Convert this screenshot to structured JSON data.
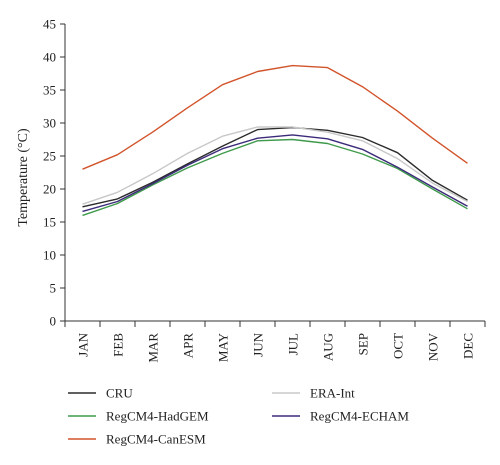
{
  "chart_data": {
    "type": "line",
    "ylabel": "Temperature (°C)",
    "xlabel": "",
    "ylim": [
      0,
      45
    ],
    "yticks": [
      0,
      5,
      10,
      15,
      20,
      25,
      30,
      35,
      40,
      45
    ],
    "categories": [
      "JAN",
      "FEB",
      "MAR",
      "APR",
      "MAY",
      "JUN",
      "JUL",
      "AUG",
      "SEP",
      "OCT",
      "NOV",
      "DEC"
    ],
    "grid": false,
    "legend_position": "bottom",
    "series": [
      {
        "name": "CRU",
        "color": "#2b2b2b",
        "values": [
          17.3,
          18.5,
          21.0,
          23.8,
          26.5,
          29.0,
          29.3,
          28.9,
          27.8,
          25.5,
          21.3,
          18.3
        ]
      },
      {
        "name": "ERA-Int",
        "color": "#c8c8c8",
        "values": [
          17.7,
          19.5,
          22.3,
          25.4,
          28.0,
          29.4,
          29.4,
          28.6,
          27.3,
          24.6,
          20.9,
          18.1
        ]
      },
      {
        "name": "RegCM4-HadGEM",
        "color": "#3f9a4b",
        "values": [
          16.0,
          17.8,
          20.6,
          23.2,
          25.4,
          27.3,
          27.5,
          26.9,
          25.3,
          23.1,
          20.0,
          17.0
        ]
      },
      {
        "name": "RegCM4-ECHAM",
        "color": "#3b2a7a",
        "values": [
          16.6,
          18.1,
          20.8,
          23.6,
          26.1,
          27.7,
          28.2,
          27.6,
          26.0,
          23.3,
          20.3,
          17.4
        ]
      },
      {
        "name": "RegCM4-CanESM",
        "color": "#d2542b",
        "values": [
          23.0,
          25.2,
          28.6,
          32.3,
          35.8,
          37.8,
          38.7,
          38.4,
          35.5,
          31.8,
          27.7,
          23.9
        ]
      }
    ],
    "legend": [
      {
        "label": "CRU",
        "series": 0
      },
      {
        "label": "ERA-Int",
        "series": 1
      },
      {
        "label": "RegCM4-HadGEM",
        "series": 2
      },
      {
        "label": "RegCM4-ECHAM",
        "series": 3
      },
      {
        "label": "RegCM4-CanESM",
        "series": 4
      }
    ]
  }
}
